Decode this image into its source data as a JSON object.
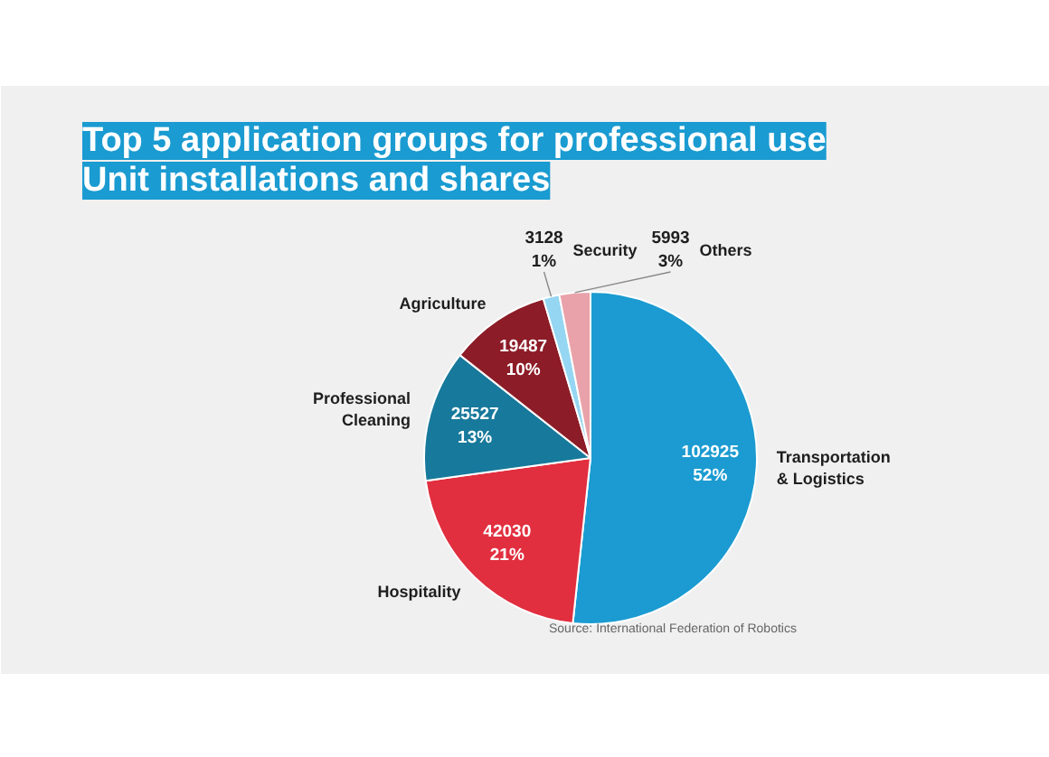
{
  "chart_data": {
    "type": "pie",
    "title": "Top 5 application groups for professional use",
    "subtitle": "Unit installations and shares",
    "categories": [
      "Transportation\n& Logistics",
      "Hospitality",
      "Professional\nCleaning",
      "Agriculture",
      "Security",
      "Others"
    ],
    "values": [
      102925,
      42030,
      25527,
      19487,
      3128,
      5993
    ],
    "colors": [
      "#1b9bd1",
      "#e12f3f",
      "#17799b",
      "#8c1c27",
      "#95d6f2",
      "#e9a2a9"
    ],
    "value_labels": [
      "102925\n52%",
      "42030\n21%",
      "25527\n13%",
      "19487\n10%",
      "3128\n1%",
      "5993\n3%"
    ],
    "annotations": [
      "Source: International Federation of Robotics"
    ]
  }
}
